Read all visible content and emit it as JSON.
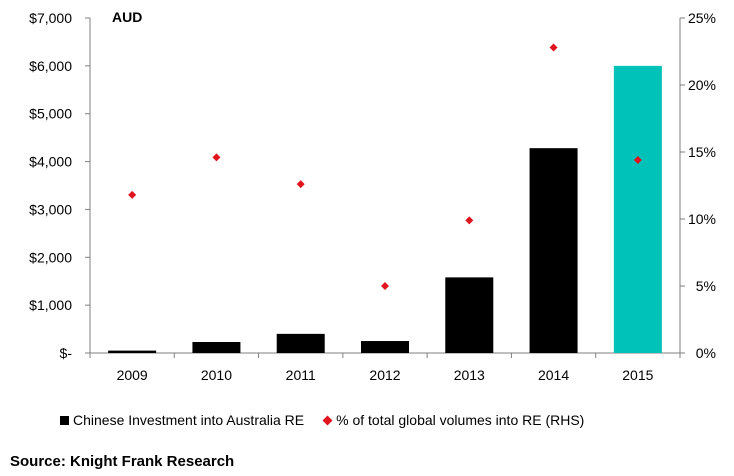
{
  "chart_data": {
    "type": "bar",
    "unit_label": "AUD",
    "categories": [
      "2009",
      "2010",
      "2011",
      "2012",
      "2013",
      "2014",
      "2015"
    ],
    "series": [
      {
        "name": "Chinese Investment into Australia RE",
        "type": "bar",
        "axis": "left",
        "values": [
          50,
          230,
          400,
          250,
          1580,
          4280,
          6000
        ],
        "colors": [
          "#000000",
          "#000000",
          "#000000",
          "#000000",
          "#000000",
          "#000000",
          "#00c2b8"
        ]
      },
      {
        "name": "% of total global volumes into RE (RHS)",
        "type": "scatter",
        "axis": "right",
        "values": [
          11.8,
          14.6,
          12.6,
          5.0,
          9.9,
          22.8,
          14.4
        ],
        "color": "#e0141e"
      }
    ],
    "y_left": {
      "ylim": [
        0,
        7000
      ],
      "ticks": [
        "$-",
        "$1,000",
        "$2,000",
        "$3,000",
        "$4,000",
        "$5,000",
        "$6,000",
        "$7,000"
      ]
    },
    "y_right": {
      "ylim": [
        0,
        25
      ],
      "ticks": [
        "0%",
        "5%",
        "10%",
        "15%",
        "20%",
        "25%"
      ]
    },
    "grid": false,
    "legend_position": "bottom"
  },
  "source": "Source: Knight Frank Research"
}
